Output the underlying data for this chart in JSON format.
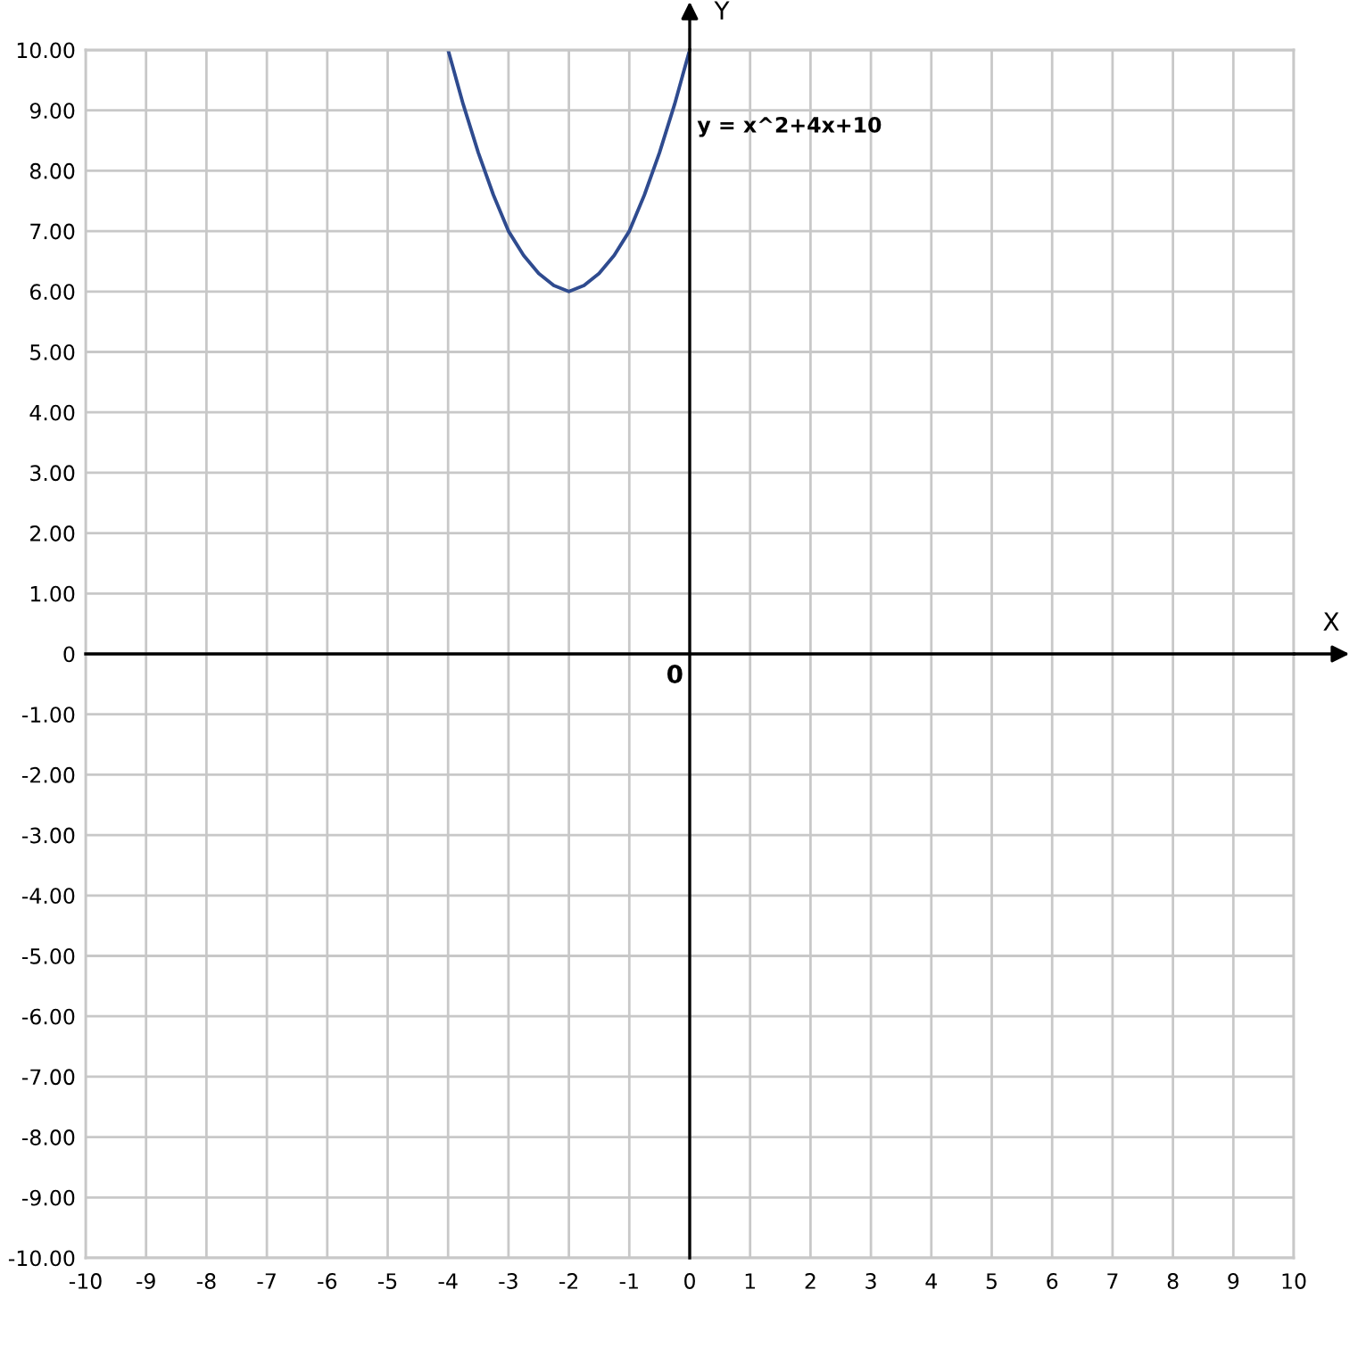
{
  "chart_data": {
    "type": "line",
    "xlabel": "X",
    "ylabel": "Y",
    "series": [
      {
        "name": "y = x^2+4x+10",
        "color": "#2f4b8f",
        "x": [
          -4,
          -3.75,
          -3.5,
          -3.25,
          -3,
          -2.75,
          -2.5,
          -2.25,
          -2,
          -1.75,
          -1.5,
          -1.25,
          -1,
          -0.75,
          -0.5,
          -0.25,
          0
        ],
        "values": [
          10,
          9.1,
          8.3,
          7.6,
          7,
          6.6,
          6.3,
          6.1,
          6,
          6.1,
          6.3,
          6.6,
          7,
          7.6,
          8.3,
          9.1,
          10
        ]
      }
    ],
    "xlim": [
      -10,
      10
    ],
    "ylim": [
      -10,
      10
    ],
    "xticks": [
      -10,
      -9,
      -8,
      -7,
      -6,
      -5,
      -4,
      -3,
      -2,
      -1,
      0,
      1,
      2,
      3,
      4,
      5,
      6,
      7,
      8,
      9,
      10
    ],
    "yticks": [
      {
        "value": -10,
        "label": "-10.00"
      },
      {
        "value": -9,
        "label": "-9.00"
      },
      {
        "value": -8,
        "label": "-8.00"
      },
      {
        "value": -7,
        "label": "-7.00"
      },
      {
        "value": -6,
        "label": "-6.00"
      },
      {
        "value": -5,
        "label": "-5.00"
      },
      {
        "value": -4,
        "label": "-4.00"
      },
      {
        "value": -3,
        "label": "-3.00"
      },
      {
        "value": -2,
        "label": "-2.00"
      },
      {
        "value": -1,
        "label": "-1.00"
      },
      0,
      {
        "value": 1,
        "label": "1.00"
      },
      {
        "value": 2,
        "label": "2.00"
      },
      {
        "value": 3,
        "label": "3.00"
      },
      {
        "value": 4,
        "label": "4.00"
      },
      {
        "value": 5,
        "label": "5.00"
      },
      {
        "value": 6,
        "label": "6.00"
      },
      {
        "value": 7,
        "label": "7.00"
      },
      {
        "value": 8,
        "label": "8.00"
      },
      {
        "value": 9,
        "label": "9.00"
      },
      {
        "value": 10,
        "label": "10.00"
      }
    ],
    "grid": true,
    "annotations": [
      "0"
    ]
  }
}
